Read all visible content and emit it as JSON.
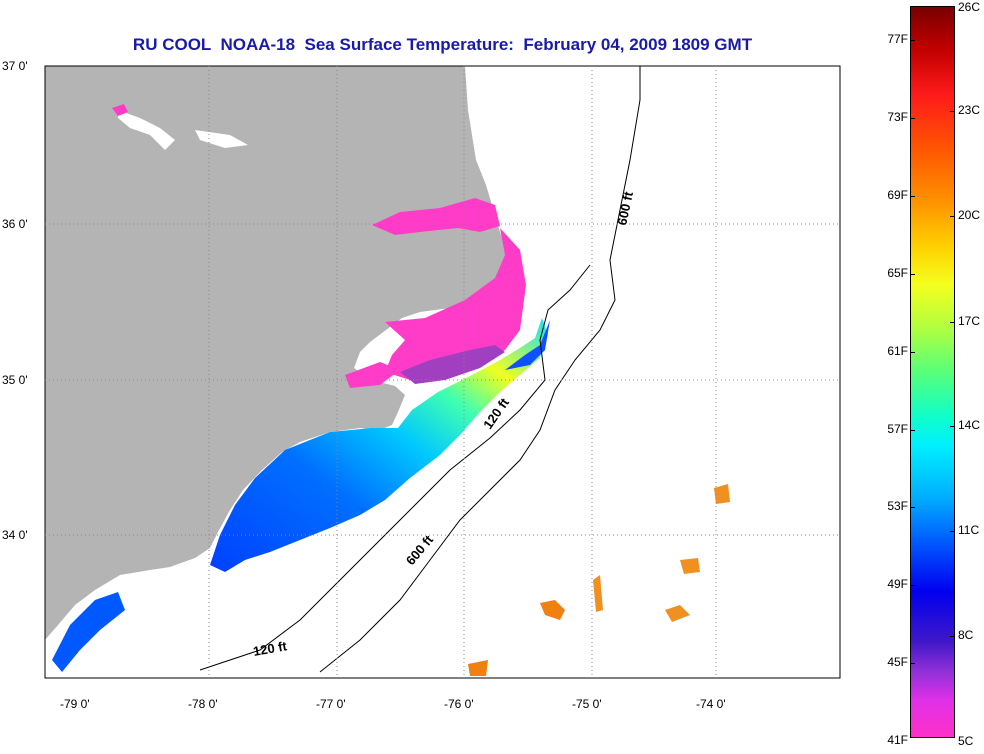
{
  "title": "RU COOL  NOAA-18  Sea Surface Temperature:  February 04, 2009 1809 GMT",
  "lat_labels": [
    "37 0'",
    "36 0'",
    "35 0'",
    "34 0'"
  ],
  "lon_labels": [
    "-79 0'",
    "-78 0'",
    "-77 0'",
    "-76 0'",
    "-75 0'",
    "-74 0'"
  ],
  "contour_labels": {
    "c600_north": "600 ft",
    "c120_mid": "120 ft",
    "c600_south": "600 ft",
    "c120_south": "120 ft"
  },
  "colorbar": {
    "fahrenheit": [
      "77F",
      "73F",
      "69F",
      "65F",
      "61F",
      "57F",
      "53F",
      "49F",
      "45F",
      "41F"
    ],
    "celsius": [
      "26C",
      "23C",
      "20C",
      "17C",
      "14C",
      "11C",
      "8C",
      "5C"
    ]
  },
  "colors": {
    "land": "#b4b4b4",
    "title": "#1a1aa8"
  }
}
